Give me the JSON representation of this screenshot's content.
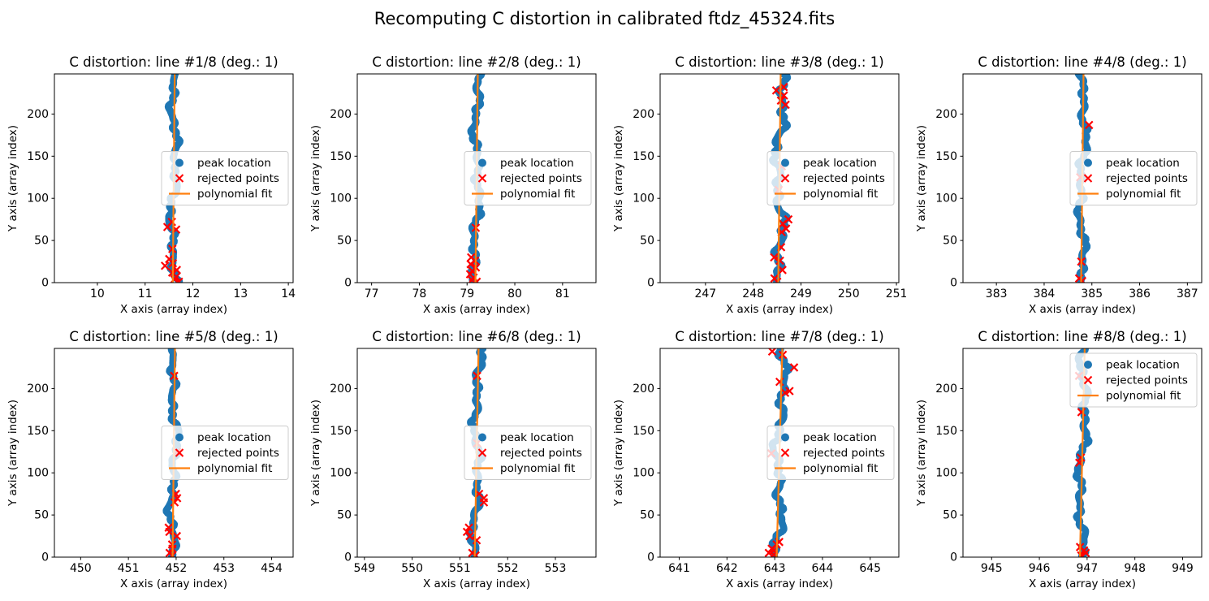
{
  "figure": {
    "title": "Recomputing C distortion in calibrated ftdz_45324.fits",
    "background": "#ffffff"
  },
  "colors": {
    "peak": "#1f77b4",
    "rejected": "#ff0000",
    "fit": "#ff7f0e",
    "axes": "#000000",
    "legend_edge": "#cccccc",
    "legend_fill": "#ffffff"
  },
  "axis_labels": {
    "x": "X axis (array index)",
    "y": "Y axis (array index)"
  },
  "legend": {
    "entries": [
      {
        "label": "peak location",
        "marker": "circle",
        "color": "#1f77b4"
      },
      {
        "label": "rejected points",
        "marker": "x",
        "color": "#ff0000"
      },
      {
        "label": "polynomial fit",
        "marker": "line",
        "color": "#ff7f0e"
      }
    ]
  },
  "chart_data": [
    {
      "type": "scatter",
      "title": "C distortion: line #1/8 (deg.: 1)",
      "x_center": 11.6,
      "tilt": 0.04,
      "wobble_amplitude": 0.12,
      "xlim": [
        9.1,
        14.1
      ],
      "xticks": [
        10,
        11,
        12,
        13,
        14
      ],
      "ylim": [
        0,
        247.6
      ],
      "yticks": [
        0,
        50,
        100,
        150,
        200
      ],
      "peak_band": {
        "y_min": 0,
        "y_max": 247.5,
        "n_points": 166
      },
      "rejected_points": [
        {
          "y": 72,
          "dx": 0.05
        },
        {
          "y": 66,
          "dx": -0.05
        },
        {
          "y": 63,
          "dx": 0.08
        },
        {
          "y": 40,
          "dx": 0.02
        },
        {
          "y": 28,
          "dx": -0.08
        },
        {
          "y": 23,
          "dx": 0
        },
        {
          "y": 20,
          "dx": -0.12
        },
        {
          "y": 15,
          "dx": 0.1
        },
        {
          "y": 12,
          "dx": -0.04
        },
        {
          "y": 7,
          "dx": 0.02
        },
        {
          "y": 4,
          "dx": -0.06
        },
        {
          "y": 1,
          "dx": 0
        }
      ],
      "fit_line_x": 11.6,
      "legend_position": "center-right"
    },
    {
      "type": "scatter",
      "title": "C distortion: line #2/8 (deg.: 1)",
      "x_center": 79.2,
      "tilt": 0.05,
      "wobble_amplitude": 0.12,
      "xlim": [
        76.7,
        81.7
      ],
      "xticks": [
        77,
        78,
        79,
        80,
        81
      ],
      "ylim": [
        0,
        247.6
      ],
      "yticks": [
        0,
        50,
        100,
        150,
        200
      ],
      "peak_band": {
        "y_min": 0,
        "y_max": 247.5,
        "n_points": 166
      },
      "rejected_points": [
        {
          "y": 65,
          "dx": 0.08
        },
        {
          "y": 30,
          "dx": -0.1
        },
        {
          "y": 26,
          "dx": -0.02
        },
        {
          "y": 22,
          "dx": -0.12
        },
        {
          "y": 18,
          "dx": 0.06
        },
        {
          "y": 14,
          "dx": 0.02
        },
        {
          "y": 10,
          "dx": -0.05
        },
        {
          "y": 6,
          "dx": 0.03
        },
        {
          "y": 3,
          "dx": -0.02
        },
        {
          "y": 1,
          "dx": 0.05
        }
      ],
      "fit_line_x": 79.2,
      "legend_position": "center-right"
    },
    {
      "type": "scatter",
      "title": "C distortion: line #3/8 (deg.: 1)",
      "x_center": 248.55,
      "tilt": 0.05,
      "wobble_amplitude": 0.16,
      "xlim": [
        246.05,
        251.05
      ],
      "xticks": [
        247,
        248,
        249,
        250,
        251
      ],
      "ylim": [
        0,
        247.6
      ],
      "yticks": [
        0,
        50,
        100,
        150,
        200
      ],
      "peak_band": {
        "y_min": 0,
        "y_max": 247.5,
        "n_points": 166
      },
      "rejected_points": [
        {
          "y": 232,
          "dx": 0.02
        },
        {
          "y": 228,
          "dx": -0.05
        },
        {
          "y": 222,
          "dx": 0.05
        },
        {
          "y": 216,
          "dx": -0.02
        },
        {
          "y": 211,
          "dx": 0.03
        },
        {
          "y": 138,
          "dx": 0.05
        },
        {
          "y": 110,
          "dx": 0.03
        },
        {
          "y": 75,
          "dx": 0.06
        },
        {
          "y": 70,
          "dx": -0.03
        },
        {
          "y": 64,
          "dx": 0.08
        },
        {
          "y": 60,
          "dx": 0.02
        },
        {
          "y": 42,
          "dx": 0.05
        },
        {
          "y": 30,
          "dx": -0.08
        },
        {
          "y": 26,
          "dx": 0.04
        },
        {
          "y": 15,
          "dx": 0.1
        },
        {
          "y": 5,
          "dx": -0.05
        },
        {
          "y": 1,
          "dx": 0.02
        }
      ],
      "fit_line_x": 248.55,
      "legend_position": "center-right"
    },
    {
      "type": "scatter",
      "title": "C distortion: line #4/8 (deg.: 1)",
      "x_center": 384.8,
      "tilt": 0.05,
      "wobble_amplitude": 0.12,
      "xlim": [
        382.3,
        387.3
      ],
      "xticks": [
        383,
        384,
        385,
        386,
        387
      ],
      "ylim": [
        0,
        247.6
      ],
      "yticks": [
        0,
        50,
        100,
        150,
        200
      ],
      "peak_band": {
        "y_min": 0,
        "y_max": 247.5,
        "n_points": 166
      },
      "rejected_points": [
        {
          "y": 187,
          "dx": 0.1
        },
        {
          "y": 125,
          "dx": -0.05
        },
        {
          "y": 25,
          "dx": -0.02
        },
        {
          "y": 5,
          "dx": -0.05
        },
        {
          "y": 2,
          "dx": 0.02
        }
      ],
      "fit_line_x": 384.8,
      "legend_position": "center-right"
    },
    {
      "type": "scatter",
      "title": "C distortion: line #5/8 (deg.: 1)",
      "x_center": 451.95,
      "tilt": 0.05,
      "wobble_amplitude": 0.12,
      "xlim": [
        449.45,
        454.45
      ],
      "xticks": [
        450,
        451,
        452,
        453,
        454
      ],
      "ylim": [
        0,
        247.6
      ],
      "yticks": [
        0,
        50,
        100,
        150,
        200
      ],
      "peak_band": {
        "y_min": 0,
        "y_max": 247.5,
        "n_points": 166
      },
      "rejected_points": [
        {
          "y": 215,
          "dx": 0.02
        },
        {
          "y": 125,
          "dx": 0.02
        },
        {
          "y": 75,
          "dx": 0.05
        },
        {
          "y": 70,
          "dx": 0.1
        },
        {
          "y": 65,
          "dx": 0.08
        },
        {
          "y": 35,
          "dx": -0.08
        },
        {
          "y": 30,
          "dx": -0.05
        },
        {
          "y": 25,
          "dx": 0.06
        },
        {
          "y": 15,
          "dx": -0.1
        },
        {
          "y": 10,
          "dx": -0.03
        },
        {
          "y": 5,
          "dx": -0.06
        },
        {
          "y": 2,
          "dx": 0
        }
      ],
      "fit_line_x": 451.95,
      "legend_position": "center-right"
    },
    {
      "type": "scatter",
      "title": "C distortion: line #6/8 (deg.: 1)",
      "x_center": 551.35,
      "tilt": 0.08,
      "wobble_amplitude": 0.12,
      "xlim": [
        548.85,
        553.85
      ],
      "xticks": [
        549,
        550,
        551,
        552,
        553
      ],
      "ylim": [
        0,
        247.6
      ],
      "yticks": [
        0,
        50,
        100,
        150,
        200
      ],
      "peak_band": {
        "y_min": 0,
        "y_max": 247.5,
        "n_points": 166
      },
      "rejected_points": [
        {
          "y": 215,
          "dx": 0.02
        },
        {
          "y": 135,
          "dx": 0.05
        },
        {
          "y": 75,
          "dx": 0.05
        },
        {
          "y": 70,
          "dx": 0.08
        },
        {
          "y": 65,
          "dx": 0.1
        },
        {
          "y": 35,
          "dx": -0.1
        },
        {
          "y": 30,
          "dx": -0.06
        },
        {
          "y": 25,
          "dx": -0.02
        },
        {
          "y": 20,
          "dx": 0.12
        },
        {
          "y": 5,
          "dx": -0.04
        },
        {
          "y": 2,
          "dx": 0.02
        }
      ],
      "fit_line_x": 551.35,
      "legend_position": "center-right"
    },
    {
      "type": "scatter",
      "title": "C distortion: line #7/8 (deg.: 1)",
      "x_center": 643.1,
      "tilt": 0.12,
      "wobble_amplitude": 0.15,
      "xlim": [
        640.6,
        645.6
      ],
      "xticks": [
        641,
        642,
        643,
        644,
        645
      ],
      "ylim": [
        0,
        247.6
      ],
      "yticks": [
        0,
        50,
        100,
        150,
        200
      ],
      "peak_band": {
        "y_min": 0,
        "y_max": 247.5,
        "n_points": 166
      },
      "rejected_points": [
        {
          "y": 244,
          "dx": -0.15
        },
        {
          "y": 240,
          "dx": 0.1
        },
        {
          "y": 225,
          "dx": 0.12
        },
        {
          "y": 208,
          "dx": -0.08
        },
        {
          "y": 197,
          "dx": 0.1
        },
        {
          "y": 195,
          "dx": 0.05
        },
        {
          "y": 123,
          "dx": -0.05
        },
        {
          "y": 18,
          "dx": 0.12
        },
        {
          "y": 15,
          "dx": 0.08
        },
        {
          "y": 10,
          "dx": -0.1
        },
        {
          "y": 8,
          "dx": -0.05
        },
        {
          "y": 5,
          "dx": -0.12
        },
        {
          "y": 3,
          "dx": 0
        }
      ],
      "fit_line_x": 643.1,
      "legend_position": "center-right"
    },
    {
      "type": "scatter",
      "title": "C distortion: line #8/8 (deg.: 1)",
      "x_center": 946.9,
      "tilt": 0.1,
      "wobble_amplitude": 0.13,
      "xlim": [
        944.4,
        949.4
      ],
      "xticks": [
        945,
        946,
        947,
        948,
        949
      ],
      "ylim": [
        0,
        247.6
      ],
      "yticks": [
        0,
        50,
        100,
        150,
        200
      ],
      "peak_band": {
        "y_min": 0,
        "y_max": 247.5,
        "n_points": 166
      },
      "rejected_points": [
        {
          "y": 215,
          "dx": -0.05
        },
        {
          "y": 172,
          "dx": -0.08
        },
        {
          "y": 118,
          "dx": 0.02
        },
        {
          "y": 112,
          "dx": -0.04
        },
        {
          "y": 12,
          "dx": -0.05
        },
        {
          "y": 8,
          "dx": -0.02
        },
        {
          "y": 5,
          "dx": 0.02
        },
        {
          "y": 2,
          "dx": -0.03
        }
      ],
      "fit_line_x": 946.9,
      "legend_position": "upper-right"
    }
  ]
}
